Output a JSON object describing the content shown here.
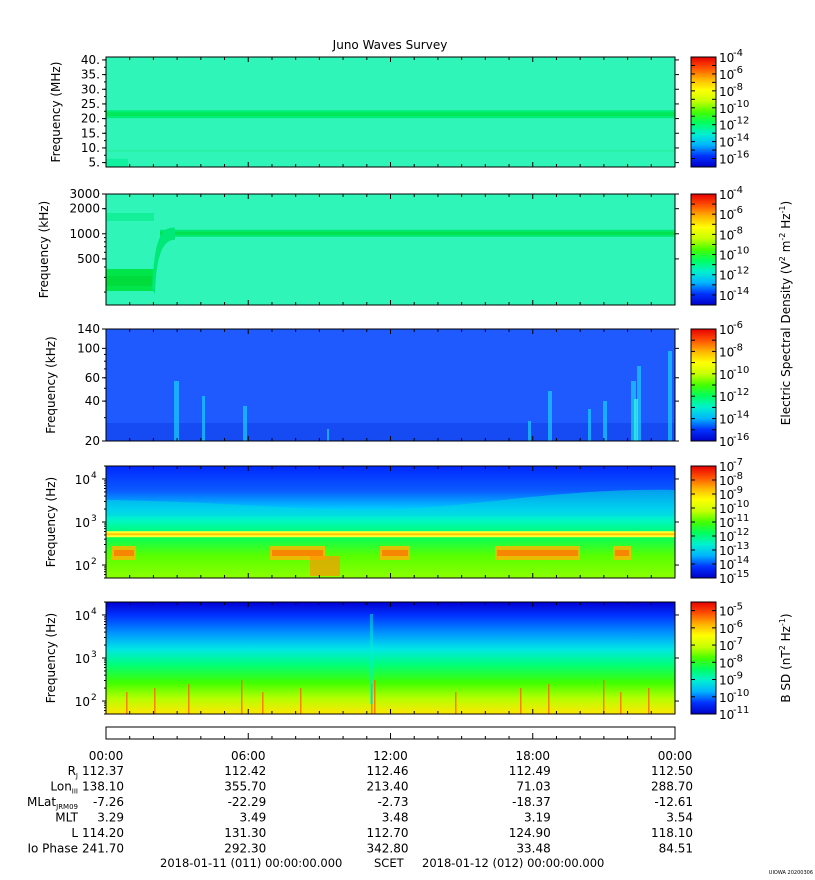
{
  "chart_data": {
    "type": "heatmap",
    "title": "Juno Waves Survey",
    "colors": {
      "background": "#2ff5b8",
      "colormap": [
        "#0000c8",
        "#0032ff",
        "#00b4ff",
        "#00f0d0",
        "#00ff60",
        "#46ff00",
        "#c8ff00",
        "#ffff00",
        "#ffb400",
        "#ff5000",
        "#e60000"
      ]
    },
    "panels": [
      {
        "ylabel": "Frequency (MHz)",
        "yscale": "linear",
        "ylim": [
          3.5,
          41
        ],
        "yticks": [
          {
            "v": 40,
            "l": "40."
          },
          {
            "v": 35,
            "l": "35."
          },
          {
            "v": 30,
            "l": "30."
          },
          {
            "v": 25,
            "l": "25."
          },
          {
            "v": 20,
            "l": "20."
          },
          {
            "v": 15,
            "l": "15."
          },
          {
            "v": 10,
            "l": "10."
          },
          {
            "v": 5,
            "l": "5."
          }
        ],
        "colorbar": {
          "ylim": [
            -17,
            -4
          ],
          "ticks": [
            {
              "v": -4,
              "l": "-4"
            },
            {
              "v": -6,
              "l": "-6"
            },
            {
              "v": -8,
              "l": "-8"
            },
            {
              "v": -10,
              "l": "-10"
            },
            {
              "v": -12,
              "l": "-12"
            },
            {
              "v": -14,
              "l": "-14"
            },
            {
              "v": -16,
              "l": "-16"
            }
          ],
          "label": ""
        }
      },
      {
        "ylabel": "Frequency (kHz)",
        "yscale": "log",
        "ylim": [
          140,
          3000
        ],
        "yticks": [
          {
            "v": 3000,
            "l": "3000"
          },
          {
            "v": 2000,
            "l": "2000"
          },
          {
            "v": 1000,
            "l": "1000"
          },
          {
            "v": 500,
            "l": "500"
          }
        ],
        "colorbar": {
          "ylim": [
            -15,
            -4
          ],
          "ticks": [
            {
              "v": -4,
              "l": "-4"
            },
            {
              "v": -6,
              "l": "-6"
            },
            {
              "v": -8,
              "l": "-8"
            },
            {
              "v": -10,
              "l": "-10"
            },
            {
              "v": -12,
              "l": "-12"
            },
            {
              "v": -14,
              "l": "-14"
            }
          ],
          "label": ""
        }
      },
      {
        "ylabel": "Frequency (kHz)",
        "yscale": "log",
        "ylim": [
          20,
          140
        ],
        "yticks": [
          {
            "v": 140,
            "l": "140"
          },
          {
            "v": 100,
            "l": "100"
          },
          {
            "v": 60,
            "l": "60"
          },
          {
            "v": 40,
            "l": "40"
          },
          {
            "v": 20,
            "l": "20"
          }
        ],
        "colorbar": {
          "ylim": [
            -16,
            -6
          ],
          "ticks": [
            {
              "v": -6,
              "l": "-6"
            },
            {
              "v": -8,
              "l": "-8"
            },
            {
              "v": -10,
              "l": "-10"
            },
            {
              "v": -12,
              "l": "-12"
            },
            {
              "v": -14,
              "l": "-14"
            },
            {
              "v": -16,
              "l": "-16"
            }
          ],
          "label": ""
        }
      },
      {
        "ylabel": "Frequency (Hz)",
        "yscale": "log",
        "ylim": [
          50,
          20000
        ],
        "yticks": [
          {
            "v": 10000,
            "b": "10",
            "e": "4"
          },
          {
            "v": 1000,
            "b": "10",
            "e": "3"
          },
          {
            "v": 100,
            "b": "10",
            "e": "2"
          }
        ],
        "colorbar": {
          "ylim": [
            -15,
            -7
          ],
          "ticks": [
            {
              "v": -7,
              "l": "-7"
            },
            {
              "v": -8,
              "l": "-8"
            },
            {
              "v": -9,
              "l": "-9"
            },
            {
              "v": -10,
              "l": "-10"
            },
            {
              "v": -11,
              "l": "-11"
            },
            {
              "v": -12,
              "l": "-12"
            },
            {
              "v": -13,
              "l": "-13"
            },
            {
              "v": -14,
              "l": "-14"
            },
            {
              "v": -15,
              "l": "-15"
            }
          ],
          "label": ""
        }
      },
      {
        "ylabel": "Frequency (Hz)",
        "yscale": "log",
        "ylim": [
          50,
          20000
        ],
        "yticks": [
          {
            "v": 10000,
            "b": "10",
            "e": "4"
          },
          {
            "v": 1000,
            "b": "10",
            "e": "3"
          },
          {
            "v": 100,
            "b": "10",
            "e": "2"
          }
        ],
        "colorbar": {
          "ylim": [
            -11,
            -4.5
          ],
          "ticks": [
            {
              "v": -5,
              "l": "-5"
            },
            {
              "v": -6,
              "l": "-6"
            },
            {
              "v": -7,
              "l": "-7"
            },
            {
              "v": -8,
              "l": "-8"
            },
            {
              "v": -9,
              "l": "-9"
            },
            {
              "v": -10,
              "l": "-10"
            },
            {
              "v": -11,
              "l": "-11"
            }
          ],
          "label": ""
        }
      }
    ],
    "colorbar_tick_base": "10",
    "efield_colorbar_label": {
      "pre": "Electric Spectral Density (V",
      "s1": "2",
      "mid": " m",
      "s2": "-2",
      "mid2": " Hz",
      "s3": "-1",
      "post": ")"
    },
    "bfield_colorbar_label": {
      "pre": "B SD (nT",
      "s1": "2",
      "mid": " Hz",
      "s2": "-1",
      "post": ")"
    },
    "x_ticks": [
      "00:00",
      "06:00",
      "12:00",
      "18:00",
      "00:00"
    ],
    "ephemeris": [
      {
        "label": "R",
        "sub": "J",
        "values": [
          "112.37",
          "112.42",
          "112.46",
          "112.49",
          "112.50"
        ]
      },
      {
        "label": "Lon",
        "sub": "III",
        "values": [
          "138.10",
          "355.70",
          "213.40",
          "71.03",
          "288.70"
        ]
      },
      {
        "label": "MLat",
        "sub": "JRM09",
        "values": [
          "-7.26",
          "-22.29",
          "-2.73",
          "-18.37",
          "-12.61"
        ]
      },
      {
        "label": "MLT",
        "sub": "",
        "values": [
          "3.29",
          "3.49",
          "3.48",
          "3.19",
          "3.54"
        ]
      },
      {
        "label": "L",
        "sub": "",
        "values": [
          "114.20",
          "131.30",
          "112.70",
          "124.90",
          "118.10"
        ]
      },
      {
        "label": "Io Phase",
        "sub": "",
        "values": [
          "241.70",
          "292.30",
          "342.80",
          "33.48",
          "84.51"
        ]
      }
    ],
    "footer": {
      "start": "2018-01-11 (011) 00:00:00.000",
      "scet": "SCET",
      "end": "2018-01-12 (012) 00:00:00.000"
    },
    "credit": "UIOWA 20200306"
  }
}
